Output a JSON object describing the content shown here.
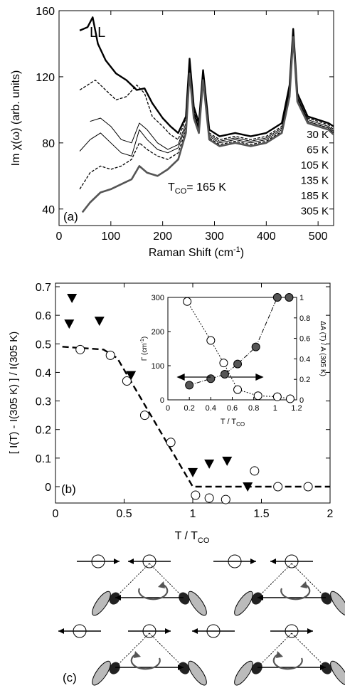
{
  "chart_data": [
    {
      "panel": "(a)",
      "type": "line",
      "annotation": "LL",
      "tco_label": "T",
      "tco_sub": "CO",
      "tco_value": "= 165 K",
      "xlabel": "Raman Shift (cm",
      "xlabel_sup": "-1",
      "xlabel_end": ")",
      "ylabel": "Im χ(ω) (arb. units)",
      "xlim": [
        0,
        530
      ],
      "ylim": [
        30,
        160
      ],
      "xticks": [
        "0",
        "100",
        "200",
        "300",
        "400",
        "500"
      ],
      "yticks": [
        "40",
        "80",
        "120",
        "160"
      ],
      "temperature_labels": [
        "30 K",
        "65 K",
        "105 K",
        "135 K",
        "185 K",
        "305 K"
      ],
      "series": [
        {
          "name": "30 K",
          "style": "thick-black",
          "x": [
            40,
            55,
            65,
            75,
            90,
            110,
            130,
            150,
            165,
            180,
            200,
            215,
            230,
            245,
            252,
            260,
            270,
            278,
            290,
            310,
            340,
            370,
            400,
            430,
            445,
            452,
            460,
            480,
            500,
            520,
            530
          ],
          "y": [
            148,
            150,
            156,
            140,
            130,
            122,
            118,
            112,
            113,
            104,
            95,
            90,
            86,
            96,
            131,
            102,
            92,
            124,
            88,
            84,
            86,
            84,
            86,
            92,
            115,
            149,
            110,
            96,
            94,
            92,
            90
          ]
        },
        {
          "name": "65 K",
          "style": "dashed",
          "x": [
            40,
            55,
            70,
            90,
            110,
            130,
            150,
            165,
            180,
            200,
            215,
            230,
            245,
            252,
            260,
            270,
            278,
            290,
            310,
            340,
            370,
            400,
            430,
            445,
            452,
            460,
            480,
            500,
            520,
            530
          ],
          "y": [
            112,
            115,
            118,
            112,
            106,
            108,
            115,
            110,
            96,
            90,
            85,
            82,
            95,
            128,
            100,
            90,
            123,
            86,
            82,
            84,
            82,
            84,
            90,
            115,
            148,
            110,
            95,
            93,
            91,
            88
          ]
        },
        {
          "name": "105 K",
          "style": "thin-black",
          "x": [
            60,
            80,
            100,
            120,
            140,
            155,
            170,
            190,
            210,
            230,
            245,
            252,
            260,
            270,
            278,
            290,
            310,
            340,
            370,
            400,
            430,
            445,
            452,
            460,
            480,
            500,
            520,
            530
          ],
          "y": [
            93,
            95,
            90,
            82,
            80,
            92,
            88,
            80,
            76,
            79,
            92,
            126,
            99,
            89,
            122,
            85,
            81,
            83,
            81,
            83,
            89,
            112,
            147,
            108,
            94,
            92,
            90,
            87
          ]
        },
        {
          "name": "135 K",
          "style": "thin-black",
          "x": [
            40,
            60,
            80,
            100,
            120,
            140,
            155,
            170,
            190,
            210,
            230,
            245,
            252,
            260,
            270,
            278,
            290,
            310,
            340,
            370,
            400,
            430,
            445,
            452,
            460,
            480,
            500,
            520,
            530
          ],
          "y": [
            75,
            82,
            86,
            80,
            74,
            72,
            88,
            82,
            76,
            74,
            77,
            90,
            125,
            98,
            88,
            121,
            84,
            80,
            82,
            80,
            82,
            88,
            110,
            146,
            107,
            93,
            91,
            89,
            86
          ]
        },
        {
          "name": "185 K",
          "style": "dashed",
          "x": [
            40,
            60,
            80,
            100,
            120,
            140,
            155,
            170,
            190,
            210,
            230,
            245,
            252,
            260,
            270,
            278,
            290,
            310,
            340,
            370,
            400,
            430,
            445,
            452,
            460,
            480,
            500,
            520,
            530
          ],
          "y": [
            52,
            62,
            66,
            64,
            66,
            70,
            80,
            76,
            72,
            70,
            74,
            88,
            124,
            97,
            87,
            120,
            83,
            79,
            81,
            79,
            81,
            87,
            110,
            146,
            107,
            93,
            91,
            89,
            86
          ]
        },
        {
          "name": "305 K",
          "style": "thick-gray",
          "x": [
            45,
            60,
            80,
            100,
            120,
            140,
            155,
            170,
            190,
            210,
            230,
            245,
            252,
            260,
            270,
            278,
            290,
            310,
            340,
            370,
            400,
            430,
            445,
            452,
            460,
            480,
            500,
            520,
            530
          ],
          "y": [
            38,
            44,
            50,
            52,
            55,
            58,
            66,
            62,
            60,
            64,
            70,
            86,
            122,
            95,
            86,
            118,
            82,
            78,
            80,
            78,
            80,
            86,
            108,
            144,
            105,
            92,
            90,
            88,
            85
          ]
        }
      ]
    },
    {
      "panel": "(b)",
      "type": "scatter",
      "xlabel": "T / T",
      "xlabel_sub": "CO",
      "ylabel": "[ I(T) - I(305 K) ] / I(305 K)",
      "xlim": [
        0,
        2
      ],
      "ylim": [
        -0.05,
        0.7
      ],
      "xticks": [
        "0",
        "0.5",
        "1",
        "1.5",
        "2"
      ],
      "yticks": [
        "0",
        "0.1",
        "0.2",
        "0.3",
        "0.4",
        "0.5",
        "0.6",
        "0.7"
      ],
      "series": [
        {
          "name": "triangles",
          "marker": "filled-triangle-down",
          "x": [
            0.1,
            0.12,
            0.32,
            0.55,
            1.0,
            1.12,
            1.25,
            1.4
          ],
          "y": [
            0.57,
            0.66,
            0.58,
            0.39,
            0.05,
            0.08,
            0.09,
            0.0
          ]
        },
        {
          "name": "circles",
          "marker": "open-circle",
          "x": [
            0.18,
            0.4,
            0.52,
            0.65,
            0.84,
            1.02,
            1.12,
            1.24,
            1.45,
            1.62,
            1.84
          ],
          "y": [
            0.48,
            0.46,
            0.37,
            0.25,
            0.155,
            -0.03,
            -0.04,
            -0.045,
            0.055,
            0.0,
            0.0
          ]
        },
        {
          "name": "guide",
          "style": "dashed",
          "x": [
            0.05,
            0.35,
            0.45,
            1.0,
            2.0
          ],
          "y": [
            0.49,
            0.48,
            0.45,
            0.0,
            0.0
          ]
        }
      ]
    },
    {
      "panel": "inset",
      "type": "scatter",
      "xlabel": "T / T",
      "xlabel_sub": "CO",
      "ylabel_left": "Γ (cm",
      "ylabel_left_sup": "-1",
      "ylabel_left_end": ")",
      "ylabel_right": "ΔA (T) / A (305 K)",
      "xlim": [
        0,
        1.2
      ],
      "ylim_left": [
        0,
        300
      ],
      "ylim_right": [
        0,
        1
      ],
      "xticks": [
        "0",
        "0.2",
        "0.4",
        "0.6",
        "0.8",
        "1",
        "1.2"
      ],
      "yticks_left": [
        "0",
        "100",
        "200",
        "300"
      ],
      "yticks_right": [
        "0",
        "0.2",
        "0.4",
        "0.6",
        "0.8",
        "1"
      ],
      "series": [
        {
          "name": "linewidth",
          "marker": "filled-circle",
          "axis": "left",
          "x": [
            0.2,
            0.4,
            0.53,
            0.65,
            0.82,
            1.02,
            1.13
          ],
          "y": [
            43,
            62,
            75,
            105,
            155,
            300,
            300
          ]
        },
        {
          "name": "area",
          "marker": "open-circle",
          "axis": "right",
          "x": [
            0.18,
            0.4,
            0.52,
            0.65,
            0.84,
            1.02,
            1.14
          ],
          "y": [
            0.96,
            0.58,
            0.36,
            0.1,
            0.04,
            0.03,
            0.01
          ]
        }
      ]
    }
  ],
  "panel_c": {
    "label": "(c)"
  }
}
